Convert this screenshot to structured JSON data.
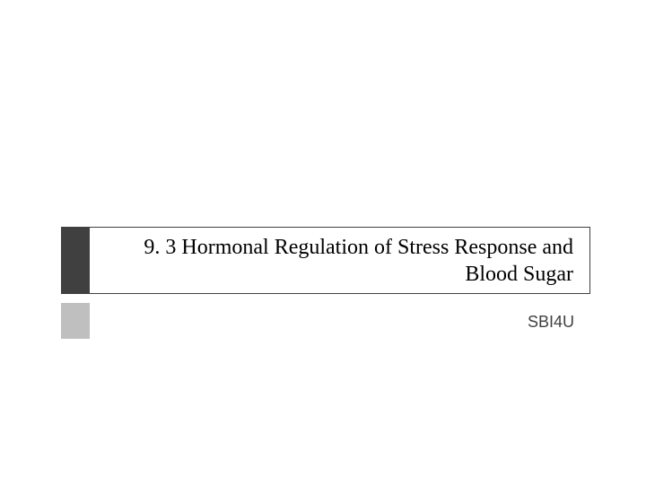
{
  "slide": {
    "title": "9. 3 Hormonal Regulation of Stress Response and Blood Sugar",
    "subtitle": "SBI4U",
    "colors": {
      "title_accent": "#404040",
      "title_border": "#404040",
      "title_text": "#000000",
      "sub_accent": "#bfbfbf",
      "sub_text": "#404040",
      "background": "#ffffff"
    },
    "fontsize": {
      "title": 24,
      "subtitle": 18
    }
  }
}
